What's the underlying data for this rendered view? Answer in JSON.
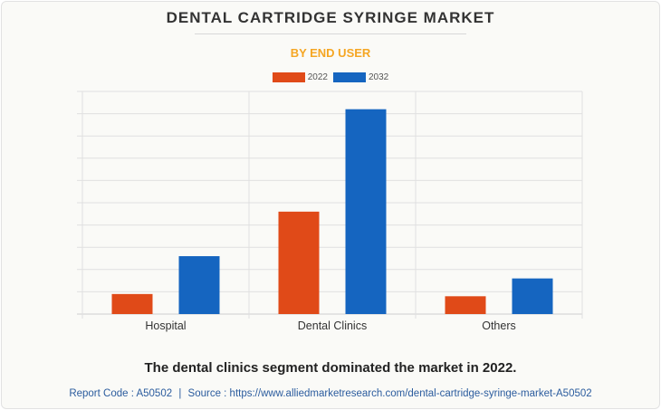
{
  "title": "DENTAL CARTRIDGE SYRINGE MARKET",
  "subtitle": "BY END USER",
  "caption": "The dental clinics segment dominated the market in 2022.",
  "footer": {
    "report_code": "Report Code : A50502",
    "separator": "|",
    "source": "Source : https://www.alliedmarketresearch.com/dental-cartridge-syringe-market-A50502"
  },
  "colors": {
    "accent": "#f5a623",
    "series_2022": "#e04a18",
    "series_2032": "#1565c0",
    "grid": "#e0e0e0",
    "text": "#333333"
  },
  "chart_data": {
    "type": "bar",
    "categories": [
      "Hospital",
      "Dental Clinics",
      "Others"
    ],
    "series": [
      {
        "name": "2022",
        "values": [
          9,
          46,
          8
        ]
      },
      {
        "name": "2032",
        "values": [
          26,
          92,
          16
        ]
      }
    ],
    "ylim": [
      0,
      100
    ],
    "grid": true,
    "legend": "top-center"
  }
}
